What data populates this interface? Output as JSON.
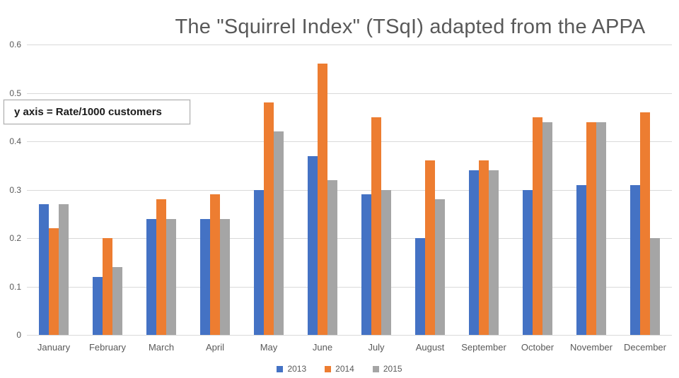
{
  "title": "The \"Squirrel Index\" (TSqI) adapted from the APPA",
  "annotation": "y axis = Rate/1000 customers",
  "colors": {
    "series_2013": "#4472C4",
    "series_2014": "#ED7D31",
    "series_2015": "#A5A5A5",
    "title_text": "#595959",
    "gridline": "#D9D9D9",
    "axis_text": "#595959"
  },
  "chart_data": {
    "type": "bar",
    "title": "The \"Squirrel Index\" (TSqI) adapted from the APPA",
    "categories": [
      "January",
      "February",
      "March",
      "April",
      "May",
      "June",
      "July",
      "August",
      "September",
      "October",
      "November",
      "December"
    ],
    "series": [
      {
        "name": "2013",
        "color": "#4472C4",
        "values": [
          0.27,
          0.12,
          0.24,
          0.24,
          0.3,
          0.37,
          0.29,
          0.2,
          0.34,
          0.3,
          0.31,
          0.31
        ]
      },
      {
        "name": "2014",
        "color": "#ED7D31",
        "values": [
          0.22,
          0.2,
          0.28,
          0.29,
          0.48,
          0.56,
          0.45,
          0.36,
          0.36,
          0.45,
          0.44,
          0.46
        ]
      },
      {
        "name": "2015",
        "color": "#A5A5A5",
        "values": [
          0.27,
          0.14,
          0.24,
          0.24,
          0.42,
          0.32,
          0.3,
          0.28,
          0.34,
          0.44,
          0.44,
          0.2
        ]
      }
    ],
    "xlabel": "",
    "ylabel": "Rate/1000 customers",
    "ylabel_note": "y axis = Rate/1000 customers",
    "ylim": [
      0,
      0.6
    ],
    "yticks": [
      0,
      0.1,
      0.2,
      0.3,
      0.4,
      0.5,
      0.6
    ],
    "grid": true,
    "legend_position": "bottom"
  }
}
